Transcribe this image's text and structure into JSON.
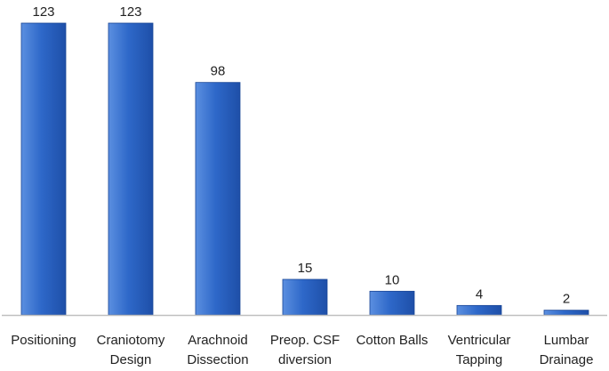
{
  "chart_data": {
    "type": "bar",
    "categories": [
      [
        "Positioning"
      ],
      [
        "Craniotomy",
        "Design"
      ],
      [
        "Arachnoid",
        "Dissection"
      ],
      [
        "Preop. CSF",
        "diversion"
      ],
      [
        "Cotton Balls"
      ],
      [
        "Ventricular",
        "Tapping"
      ],
      [
        "Lumbar",
        "Drainage"
      ]
    ],
    "values": [
      123,
      123,
      98,
      15,
      10,
      4,
      2
    ],
    "data_labels": [
      "123",
      "123",
      "98",
      "15",
      "10",
      "4",
      "2"
    ],
    "ylim": [
      0,
      123
    ],
    "grid": false,
    "legend": "none",
    "colors": {
      "bar_top": "#5B8FE0",
      "bar_mid": "#2E68C9",
      "bar_bottom": "#1E4FA8",
      "bar_edge": "#1A4696",
      "axis": "#BFBFBF",
      "text": "#222222"
    }
  }
}
